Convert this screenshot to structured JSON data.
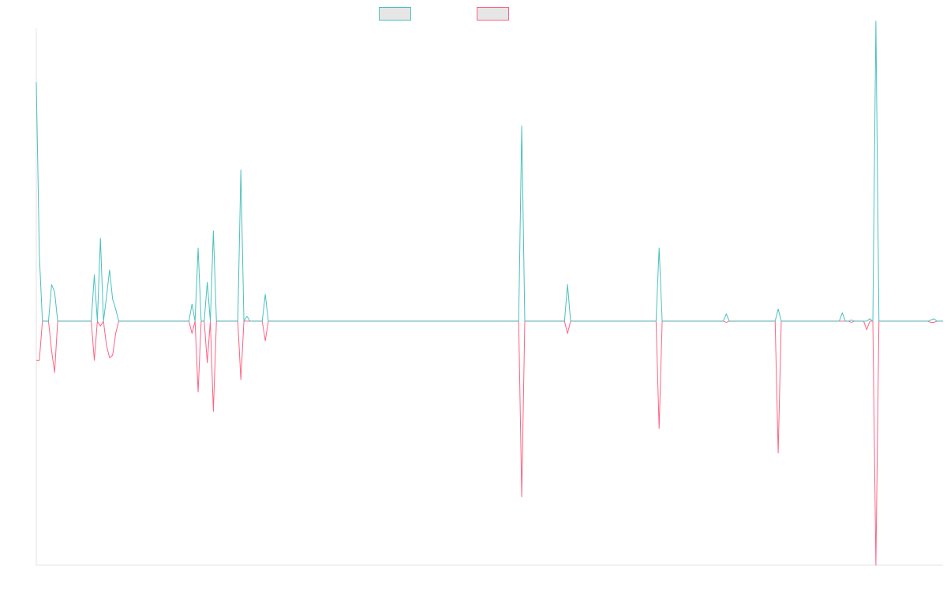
{
  "chart_data": {
    "type": "line",
    "title": "",
    "xlabel": "",
    "ylabel": "",
    "ylim": [
      -1,
      1.2
    ],
    "grid": false,
    "legend_placement": "top-center",
    "series": [
      {
        "color": "#4bc0c0",
        "fill": "#e6e6e6",
        "values": [
          0.98,
          0.27,
          0,
          0,
          0,
          0.15,
          0.12,
          0,
          0,
          0,
          0,
          0,
          0,
          0,
          0,
          0,
          0,
          0,
          0,
          0.19,
          0,
          0.34,
          0,
          0.1,
          0.21,
          0.09,
          0.05,
          0,
          0,
          0,
          0,
          0,
          0,
          0,
          0,
          0,
          0,
          0,
          0,
          0,
          0,
          0,
          0,
          0,
          0,
          0,
          0,
          0,
          0,
          0,
          0,
          0.07,
          0,
          0.3,
          0,
          0,
          0.16,
          0,
          0.37,
          0,
          0,
          0,
          0,
          0,
          0,
          0,
          0,
          0.62,
          0,
          0.02,
          0,
          0,
          0,
          0,
          0,
          0.11,
          0,
          0,
          0,
          0,
          0,
          0,
          0,
          0,
          0,
          0,
          0,
          0,
          0,
          0,
          0,
          0,
          0,
          0,
          0,
          0,
          0,
          0,
          0,
          0,
          0,
          0,
          0,
          0,
          0,
          0,
          0,
          0,
          0,
          0,
          0,
          0,
          0,
          0,
          0,
          0,
          0,
          0,
          0,
          0,
          0,
          0,
          0,
          0,
          0,
          0,
          0,
          0,
          0,
          0,
          0,
          0,
          0,
          0,
          0,
          0,
          0,
          0,
          0,
          0,
          0,
          0,
          0,
          0,
          0,
          0,
          0,
          0,
          0,
          0,
          0,
          0,
          0,
          0,
          0,
          0,
          0,
          0,
          0,
          0.8,
          0,
          0,
          0,
          0,
          0,
          0,
          0,
          0,
          0,
          0,
          0,
          0,
          0,
          0,
          0.15,
          0,
          0,
          0,
          0,
          0,
          0,
          0,
          0,
          0,
          0,
          0,
          0,
          0,
          0,
          0,
          0,
          0,
          0,
          0,
          0,
          0,
          0,
          0,
          0,
          0,
          0,
          0,
          0,
          0,
          0.3,
          0,
          0,
          0,
          0,
          0,
          0,
          0,
          0,
          0,
          0,
          0,
          0,
          0,
          0,
          0,
          0,
          0,
          0,
          0,
          0,
          0,
          0.03,
          0,
          0,
          0,
          0,
          0,
          0,
          0,
          0,
          0,
          0,
          0,
          0,
          0,
          0,
          0,
          0,
          0.05,
          0,
          0,
          0,
          0,
          0,
          0,
          0,
          0,
          0,
          0,
          0,
          0,
          0,
          0,
          0,
          0,
          0,
          0,
          0,
          0,
          0.035,
          0,
          0,
          0.005,
          0,
          0,
          0,
          0,
          0,
          0.01,
          0,
          1.23,
          0,
          0,
          0,
          0,
          0,
          0,
          0,
          0,
          0,
          0,
          0,
          0,
          0,
          0,
          0,
          0,
          0,
          0.005,
          0.01,
          0,
          0,
          0
        ]
      },
      {
        "color": "#ff6384",
        "fill": "#e6e6e6",
        "values": [
          -0.16,
          -0.16,
          0,
          0,
          0,
          -0.12,
          -0.21,
          0,
          0,
          0,
          0,
          0,
          0,
          0,
          0,
          0,
          0,
          0,
          0,
          -0.16,
          0,
          -0.02,
          0,
          -0.1,
          -0.15,
          -0.14,
          -0.05,
          0,
          0,
          0,
          0,
          0,
          0,
          0,
          0,
          0,
          0,
          0,
          0,
          0,
          0,
          0,
          0,
          0,
          0,
          0,
          0,
          0,
          0,
          0,
          0,
          -0.05,
          0,
          -0.29,
          0,
          0,
          -0.17,
          0,
          -0.37,
          0,
          0,
          0,
          0,
          0,
          0,
          0,
          0,
          -0.24,
          0,
          0,
          0,
          0,
          0,
          0,
          0,
          -0.08,
          0,
          0,
          0,
          0,
          0,
          0,
          0,
          0,
          0,
          0,
          0,
          0,
          0,
          0,
          0,
          0,
          0,
          0,
          0,
          0,
          0,
          0,
          0,
          0,
          0,
          0,
          0,
          0,
          0,
          0,
          0,
          0,
          0,
          0,
          0,
          0,
          0,
          0,
          0,
          0,
          0,
          0,
          0,
          0,
          0,
          0,
          0,
          0,
          0,
          0,
          0,
          0,
          0,
          0,
          0,
          0,
          0,
          0,
          0,
          0,
          0,
          0,
          0,
          0,
          0,
          0,
          0,
          0,
          0,
          0,
          0,
          0,
          0,
          0,
          0,
          0,
          0,
          0,
          0,
          0,
          0,
          0,
          0,
          -0.72,
          0,
          0,
          0,
          0,
          0,
          0,
          0,
          0,
          0,
          0,
          0,
          0,
          0,
          0,
          -0.05,
          0,
          0,
          0,
          0,
          0,
          0,
          0,
          0,
          0,
          0,
          0,
          0,
          0,
          0,
          0,
          0,
          0,
          0,
          0,
          0,
          0,
          0,
          0,
          0,
          0,
          0,
          0,
          0,
          0,
          -0.44,
          0,
          0,
          0,
          0,
          0,
          0,
          0,
          0,
          0,
          0,
          0,
          0,
          0,
          0,
          0,
          0,
          0,
          0,
          0,
          0,
          0,
          -0.005,
          0,
          0,
          0,
          0,
          0,
          0,
          0,
          0,
          0,
          0,
          0,
          0,
          0,
          0,
          0,
          0,
          -0.54,
          0,
          0,
          0,
          0,
          0,
          0,
          0,
          0,
          0,
          0,
          0,
          0,
          0,
          0,
          0,
          0,
          0,
          0,
          0,
          0,
          0,
          0,
          0,
          -0.005,
          0,
          0,
          0,
          0,
          -0.035,
          0,
          0,
          -1.0,
          0,
          0,
          0,
          0,
          0,
          0,
          0,
          0,
          0,
          0,
          0,
          0,
          0,
          0,
          0,
          0,
          0,
          -0.005,
          -0.005,
          0,
          0,
          0
        ]
      }
    ],
    "axis_color": "#e3e3e3"
  }
}
